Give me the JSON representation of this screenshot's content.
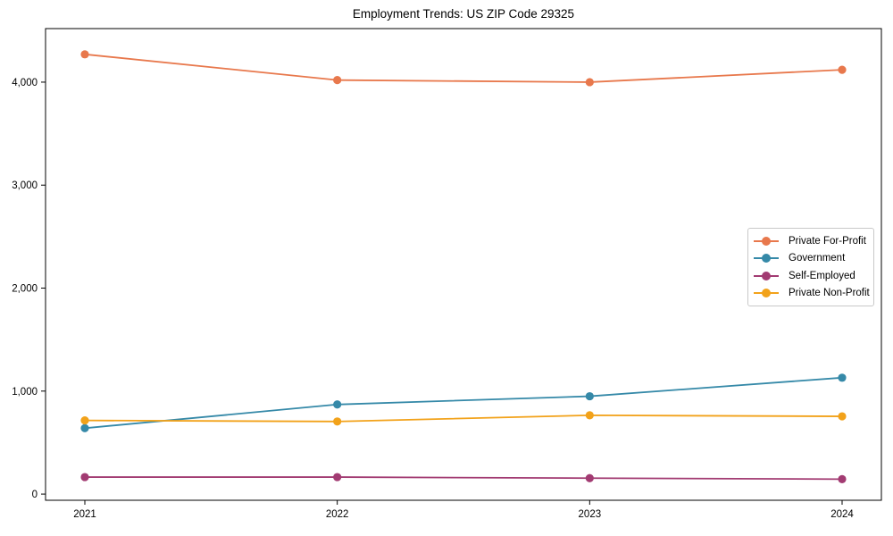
{
  "title": "Employment Trends: US ZIP Code 29325",
  "chart_data": {
    "type": "line",
    "title": "Employment Trends: US ZIP Code 29325",
    "x": [
      "2021",
      "2022",
      "2023",
      "2024"
    ],
    "series": [
      {
        "name": "Private For-Profit",
        "color": "#E8784C",
        "values": [
          4270,
          4020,
          4000,
          4120
        ]
      },
      {
        "name": "Government",
        "color": "#3589A8",
        "values": [
          640,
          870,
          950,
          1130
        ]
      },
      {
        "name": "Self-Employed",
        "color": "#A23B72",
        "values": [
          165,
          165,
          155,
          145
        ]
      },
      {
        "name": "Private Non-Profit",
        "color": "#F2A21A",
        "values": [
          715,
          705,
          765,
          755
        ]
      }
    ],
    "yticks": [
      0,
      1000,
      2000,
      3000,
      4000
    ],
    "ytick_labels": [
      "0",
      "1,000",
      "2,000",
      "3,000",
      "4,000"
    ],
    "ylim": [
      -60,
      4520
    ],
    "grid": false,
    "legend_position": "center right",
    "axis_color": "#000000",
    "background_color": "#ffffff",
    "legend_border_color": "#c9c9c9"
  }
}
